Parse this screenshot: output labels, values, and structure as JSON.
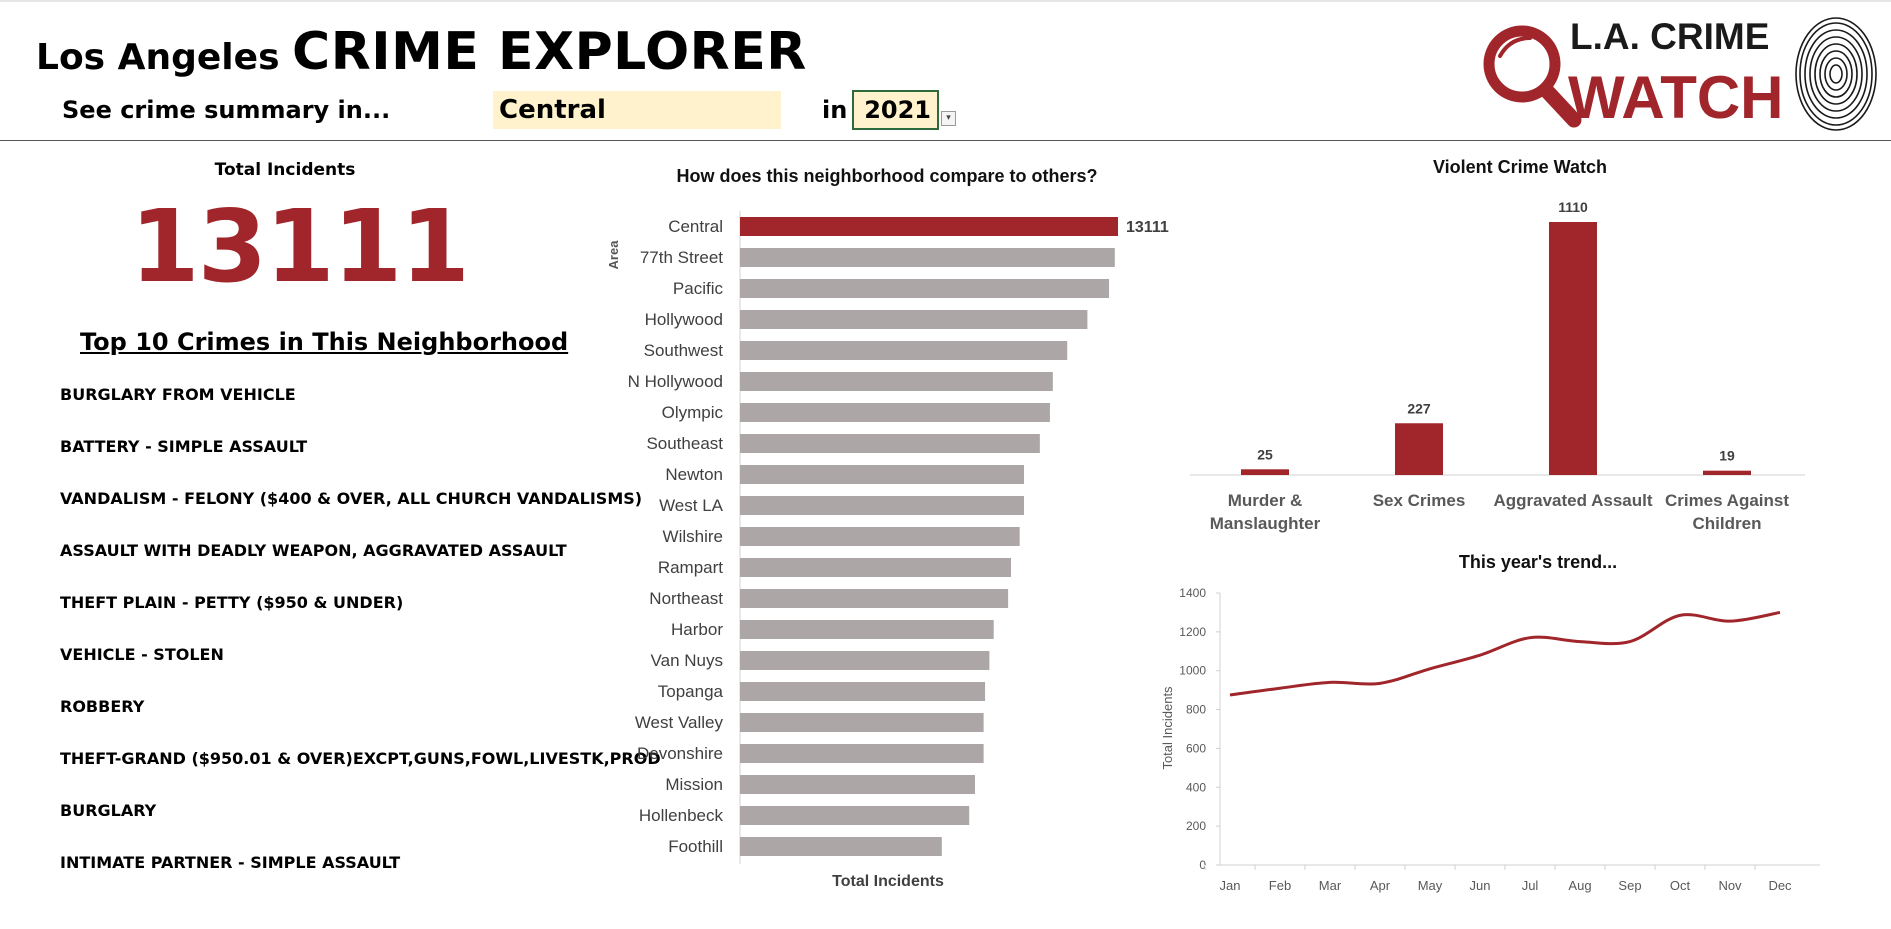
{
  "header": {
    "title_small": "Los Angeles ",
    "title_big": "CRIME EXPLORER",
    "see_label": "See crime summary in...",
    "selected_area": "Central",
    "in_label": "in",
    "selected_year": "2021",
    "logo_line1": "L.A. CRIME",
    "logo_line2": "WATCH"
  },
  "summary": {
    "total_label": "Total Incidents",
    "total_value": "13111"
  },
  "top_crimes": {
    "title": "Top 10 Crimes in This Neighborhood",
    "items": [
      "BURGLARY FROM VEHICLE",
      "BATTERY - SIMPLE ASSAULT",
      "VANDALISM - FELONY ($400 & OVER, ALL CHURCH VANDALISMS)",
      "ASSAULT WITH DEADLY WEAPON, AGGRAVATED ASSAULT",
      "THEFT PLAIN - PETTY ($950 & UNDER)",
      "VEHICLE - STOLEN",
      "ROBBERY",
      "THEFT-GRAND ($950.01 & OVER)EXCPT,GUNS,FOWL,LIVESTK,PROD",
      "BURGLARY",
      "INTIMATE PARTNER - SIMPLE ASSAULT"
    ]
  },
  "colors": {
    "accent": "#a1262b",
    "bar_gray": "#aca6a6",
    "axis": "#d0d0d0",
    "input_fill": "#fff2cc",
    "year_border": "#2e6b3a"
  },
  "chart_data": [
    {
      "type": "bar",
      "orientation": "horizontal",
      "title": "How does this neighborhood compare to others?",
      "xlabel": "Total Incidents",
      "ylabel": "Area",
      "highlight": "Central",
      "categories": [
        "Central",
        "77th Street",
        "Pacific",
        "Hollywood",
        "Southwest",
        "N Hollywood",
        "Olympic",
        "Southeast",
        "Newton",
        "West LA",
        "Wilshire",
        "Rampart",
        "Northeast",
        "Harbor",
        "Van Nuys",
        "Topanga",
        "West Valley",
        "Devonshire",
        "Mission",
        "Hollenbeck",
        "Foothill"
      ],
      "values": [
        13111,
        13000,
        12800,
        12050,
        11350,
        10850,
        10750,
        10400,
        9850,
        9850,
        9700,
        9400,
        9300,
        8800,
        8650,
        8500,
        8450,
        8450,
        8150,
        7950,
        7000
      ],
      "data_labels": [
        "13111"
      ],
      "xlim": [
        0,
        13111
      ],
      "grid": false
    },
    {
      "type": "bar",
      "title": "Violent Crime Watch",
      "categories": [
        [
          "Murder &",
          "Manslaughter"
        ],
        [
          "Sex Crimes"
        ],
        [
          "Aggravated Assault"
        ],
        [
          "Crimes Against",
          "Children"
        ]
      ],
      "values": [
        25,
        227,
        1110,
        19
      ],
      "ylim": [
        0,
        1110
      ],
      "grid": false
    },
    {
      "type": "line",
      "title": "This year's trend...",
      "ylabel": "Total Incidents",
      "categories": [
        "Jan",
        "Feb",
        "Mar",
        "Apr",
        "May",
        "Jun",
        "Jul",
        "Aug",
        "Sep",
        "Oct",
        "Nov",
        "Dec"
      ],
      "values": [
        875,
        910,
        940,
        935,
        1010,
        1080,
        1170,
        1150,
        1150,
        1285,
        1255,
        1300
      ],
      "ylim": [
        0,
        1400
      ],
      "yticks": [
        0,
        200,
        400,
        600,
        800,
        1000,
        1200,
        1400
      ],
      "grid": false
    }
  ]
}
